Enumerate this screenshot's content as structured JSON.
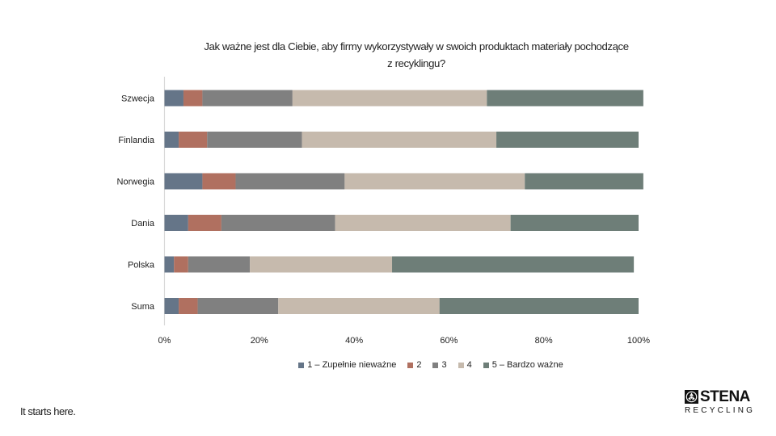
{
  "chart_data": {
    "type": "bar",
    "orientation": "horizontal",
    "stacked": true,
    "title": "Jak ważne jest dla Ciebie, aby firmy wykorzystywały w swoich produktach materiały pochodzące z recyklingu?",
    "title_lines": [
      "Jak ważne jest dla Ciebie, aby firmy wykorzystywały w swoich produktach materiały pochodzące",
      "z recyklingu?"
    ],
    "categories": [
      "Szwecja",
      "Finlandia",
      "Norwegia",
      "Dania",
      "Polska",
      "Suma"
    ],
    "series": [
      {
        "name": "1 – Zupełnie nieważne",
        "color": "#657588",
        "values": [
          4,
          3,
          8,
          5,
          2,
          3
        ]
      },
      {
        "name": "2",
        "color": "#b07060",
        "values": [
          4,
          6,
          7,
          7,
          3,
          4
        ]
      },
      {
        "name": "3",
        "color": "#808080",
        "values": [
          19,
          20,
          23,
          24,
          13,
          17
        ]
      },
      {
        "name": "4",
        "color": "#c6baad",
        "values": [
          41,
          41,
          38,
          37,
          30,
          34
        ]
      },
      {
        "name": "5 – Bardzo ważne",
        "color": "#6e7e78",
        "values": [
          33,
          30,
          25,
          27,
          51,
          42
        ]
      }
    ],
    "xlim": [
      0,
      100
    ],
    "x_ticks": [
      "0%",
      "20%",
      "40%",
      "60%",
      "80%",
      "100%"
    ],
    "xlabel": "",
    "ylabel": "",
    "grid": false,
    "legend_position": "bottom"
  },
  "footer": {
    "tagline": "It starts here."
  },
  "logo": {
    "wordmark": "STENA",
    "subtitle": "RECYCLING"
  }
}
